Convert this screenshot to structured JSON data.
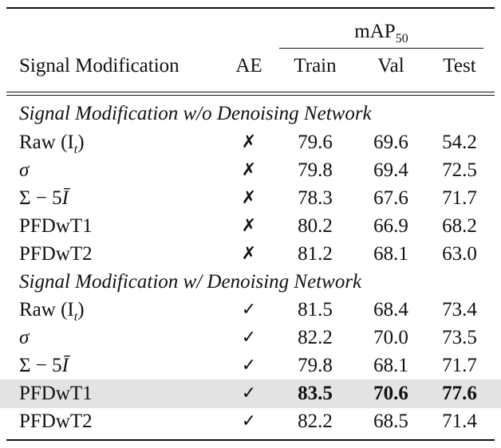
{
  "table": {
    "header": {
      "group": "mAP",
      "group_sub": "50",
      "col_signal": "Signal Modification",
      "col_ae": "AE",
      "col_train": "Train",
      "col_val": "Val",
      "col_test": "Test"
    },
    "sections": [
      {
        "title": "Signal Modification w/o Denoising Network",
        "rows": [
          {
            "signal": "Raw (I",
            "signal_sub": "t",
            "signal_close": ")",
            "ae": "✗",
            "train": "79.6",
            "val": "69.6",
            "test": "54.2"
          },
          {
            "signal": "σ",
            "ae": "✗",
            "train": "79.8",
            "val": "69.4",
            "test": "72.5"
          },
          {
            "signal": "Σ − 5",
            "signal_var": "Ī",
            "ae": "✗",
            "train": "78.3",
            "val": "67.6",
            "test": "71.7"
          },
          {
            "signal": "PFDwT1",
            "ae": "✗",
            "train": "80.2",
            "val": "66.9",
            "test": "68.2"
          },
          {
            "signal": "PFDwT2",
            "ae": "✗",
            "train": "81.2",
            "val": "68.1",
            "test": "63.0"
          }
        ]
      },
      {
        "title": "Signal Modification w/ Denoising Network",
        "rows": [
          {
            "signal": "Raw (I",
            "signal_sub": "t",
            "signal_close": ")",
            "ae": "✓",
            "train": "81.5",
            "val": "68.4",
            "test": "73.4"
          },
          {
            "signal": "σ",
            "ae": "✓",
            "train": "82.2",
            "val": "70.0",
            "test": "73.5"
          },
          {
            "signal": "Σ − 5",
            "signal_var": "Ī",
            "ae": "✓",
            "train": "79.8",
            "val": "68.1",
            "test": "71.7"
          },
          {
            "signal": "PFDwT1",
            "ae": "✓",
            "train": "83.5",
            "val": "70.6",
            "test": "77.6",
            "highlight": true
          },
          {
            "signal": "PFDwT2",
            "ae": "✓",
            "train": "82.2",
            "val": "68.5",
            "test": "71.4"
          }
        ]
      }
    ],
    "colors": {
      "text": "#111111",
      "highlight_bg": "#e3e3e3"
    }
  }
}
